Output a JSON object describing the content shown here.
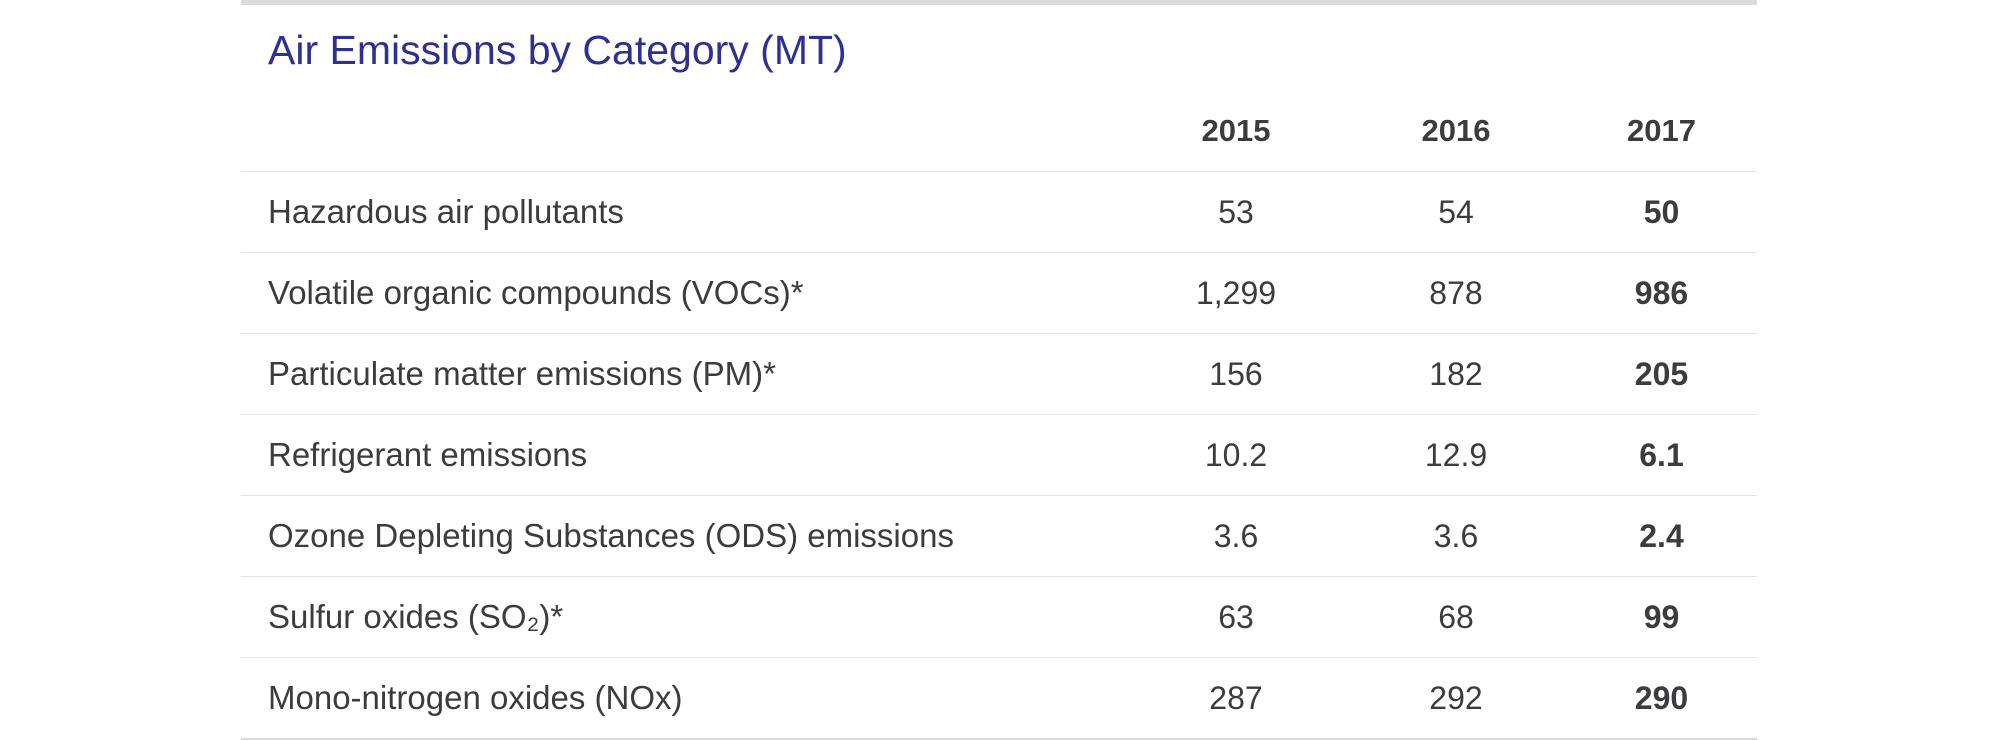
{
  "chart_data": {
    "type": "table",
    "title": "Air Emissions by Category (MT)",
    "columns": [
      "",
      "2015",
      "2016",
      "2017"
    ],
    "rows": [
      {
        "label": "Hazardous air pollutants",
        "values": [
          "53",
          "54",
          "50"
        ]
      },
      {
        "label": "Volatile organic compounds (VOCs)*",
        "values": [
          "1,299",
          "878",
          "986"
        ]
      },
      {
        "label": "Particulate matter emissions (PM)*",
        "values": [
          "156",
          "182",
          "205"
        ]
      },
      {
        "label": "Refrigerant emissions",
        "values": [
          "10.2",
          "12.9",
          "6.1"
        ]
      },
      {
        "label": "Ozone Depleting Substances (ODS) emissions",
        "values": [
          "3.6",
          "3.6",
          "2.4"
        ]
      },
      {
        "label": "Sulfur oxides (SO₂)*",
        "values": [
          "63",
          "68",
          "99"
        ]
      },
      {
        "label": "Mono-nitrogen oxides (NOx)",
        "values": [
          "287",
          "292",
          "290"
        ]
      }
    ],
    "highlighted_column": "2017"
  },
  "colors": {
    "title": "#2e3192",
    "text": "#3c3c40",
    "rule": "#e3e3e3",
    "top_rule": "#dcdcdc"
  }
}
